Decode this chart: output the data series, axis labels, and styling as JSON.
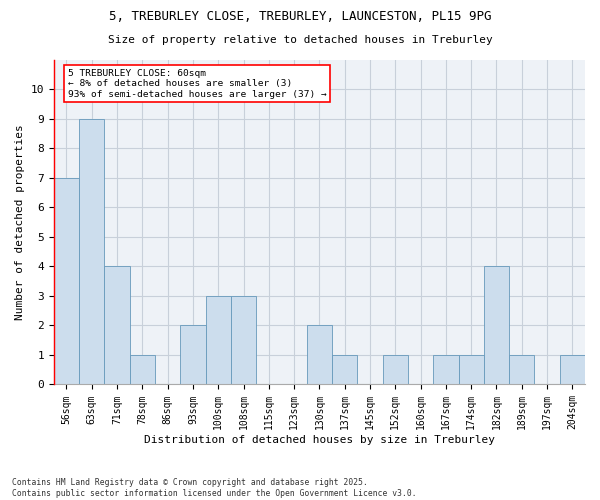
{
  "title1": "5, TREBURLEY CLOSE, TREBURLEY, LAUNCESTON, PL15 9PG",
  "title2": "Size of property relative to detached houses in Treburley",
  "xlabel": "Distribution of detached houses by size in Treburley",
  "ylabel": "Number of detached properties",
  "bin_labels": [
    "56sqm",
    "63sqm",
    "71sqm",
    "78sqm",
    "86sqm",
    "93sqm",
    "100sqm",
    "108sqm",
    "115sqm",
    "123sqm",
    "130sqm",
    "137sqm",
    "145sqm",
    "152sqm",
    "160sqm",
    "167sqm",
    "174sqm",
    "182sqm",
    "189sqm",
    "197sqm",
    "204sqm"
  ],
  "bar_heights": [
    7,
    9,
    4,
    1,
    0,
    2,
    3,
    3,
    0,
    0,
    2,
    1,
    0,
    1,
    0,
    1,
    1,
    4,
    1,
    0,
    1
  ],
  "bar_color": "#ccdded",
  "bar_edge_color": "#6699bb",
  "annotation_text": "5 TREBURLEY CLOSE: 60sqm\n← 8% of detached houses are smaller (3)\n93% of semi-detached houses are larger (37) →",
  "annotation_box_color": "white",
  "annotation_box_edge": "red",
  "ylim": [
    0,
    11
  ],
  "footer": "Contains HM Land Registry data © Crown copyright and database right 2025.\nContains public sector information licensed under the Open Government Licence v3.0.",
  "bg_color": "#ffffff",
  "plot_bg_color": "#eef2f7",
  "grid_color": "#c8d0da"
}
